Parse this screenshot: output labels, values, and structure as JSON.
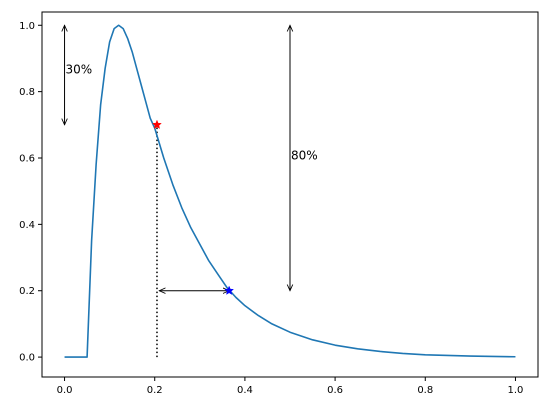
{
  "chart_data": {
    "type": "line",
    "title": "",
    "xlabel": "",
    "ylabel": "",
    "xlim": [
      -0.05,
      1.05
    ],
    "ylim": [
      -0.06,
      1.04
    ],
    "grid": false,
    "x_ticks": [
      0.0,
      0.2,
      0.4,
      0.6,
      0.8,
      1.0
    ],
    "x_tick_labels": [
      "0.0",
      "0.2",
      "0.4",
      "0.6",
      "0.8",
      "1.0"
    ],
    "y_ticks": [
      0.0,
      0.2,
      0.4,
      0.6,
      0.8,
      1.0
    ],
    "y_tick_labels": [
      "0.0",
      "0.2",
      "0.4",
      "0.6",
      "0.8",
      "1.0"
    ],
    "series": [
      {
        "color": "#1f77b4",
        "x": [
          0.0,
          0.05,
          0.06,
          0.07,
          0.08,
          0.09,
          0.1,
          0.11,
          0.12,
          0.13,
          0.14,
          0.15,
          0.16,
          0.17,
          0.18,
          0.19,
          0.2,
          0.22,
          0.24,
          0.26,
          0.28,
          0.3,
          0.32,
          0.34,
          0.36,
          0.38,
          0.4,
          0.43,
          0.46,
          0.5,
          0.55,
          0.6,
          0.65,
          0.7,
          0.75,
          0.8,
          0.85,
          0.9,
          0.95,
          1.0
        ],
        "y": [
          0.0,
          0.0,
          0.35,
          0.58,
          0.76,
          0.87,
          0.95,
          0.99,
          1.0,
          0.99,
          0.96,
          0.92,
          0.87,
          0.82,
          0.77,
          0.72,
          0.69,
          0.6,
          0.52,
          0.45,
          0.39,
          0.34,
          0.29,
          0.25,
          0.21,
          0.18,
          0.155,
          0.125,
          0.1,
          0.075,
          0.052,
          0.036,
          0.025,
          0.017,
          0.011,
          0.007,
          0.005,
          0.003,
          0.002,
          0.001
        ]
      }
    ],
    "markers": [
      {
        "x": 0.205,
        "y": 0.7,
        "shape": "star",
        "color": "#ff0000"
      },
      {
        "x": 0.365,
        "y": 0.2,
        "shape": "star",
        "color": "#0000ff"
      }
    ],
    "dotted_line": {
      "x": 0.205,
      "y_from": 0.0,
      "y_to": 0.7
    },
    "arrows": [
      {
        "name": "arrow-30",
        "x1": 0.0,
        "y1": 0.7,
        "x2": 0.0,
        "y2": 1.0
      },
      {
        "name": "arrow-80",
        "x1": 0.5,
        "y1": 0.2,
        "x2": 0.5,
        "y2": 1.0
      },
      {
        "name": "arrow-horizontal",
        "x1": 0.21,
        "y1": 0.2,
        "x2": 0.365,
        "y2": 0.2
      }
    ],
    "annotations": [
      {
        "text": "30%",
        "x": 0.0,
        "y": 0.87
      },
      {
        "text": "80%",
        "x": 0.5,
        "y": 0.61
      }
    ]
  }
}
